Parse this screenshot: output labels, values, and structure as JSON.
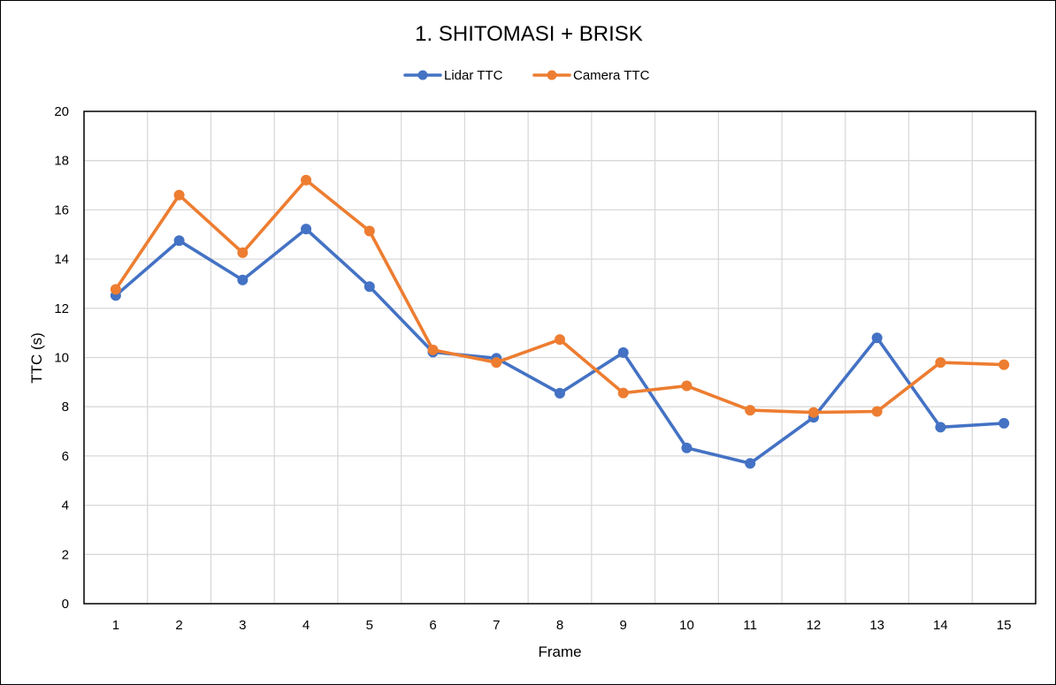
{
  "chart_data": {
    "type": "line",
    "title": "1. SHITOMASI + BRISK",
    "xlabel": "Frame",
    "ylabel": "TTC (s)",
    "x": [
      1,
      2,
      3,
      4,
      5,
      6,
      7,
      8,
      9,
      10,
      11,
      12,
      13,
      14,
      15
    ],
    "ylim": [
      0,
      20
    ],
    "yticks": [
      0,
      2,
      4,
      6,
      8,
      10,
      12,
      14,
      16,
      18,
      20
    ],
    "grid": true,
    "legend_position": "top",
    "series": [
      {
        "name": "Lidar TTC",
        "color": "#4472C4",
        "values": [
          12.52,
          14.75,
          13.15,
          15.22,
          12.88,
          10.22,
          9.97,
          8.55,
          10.2,
          6.33,
          5.7,
          7.57,
          10.8,
          7.17,
          7.33
        ]
      },
      {
        "name": "Camera TTC",
        "color": "#ED7D31",
        "values": [
          12.77,
          16.6,
          14.26,
          17.21,
          15.14,
          10.31,
          9.8,
          10.73,
          8.56,
          8.85,
          7.86,
          7.77,
          7.81,
          9.8,
          9.71
        ]
      }
    ]
  }
}
